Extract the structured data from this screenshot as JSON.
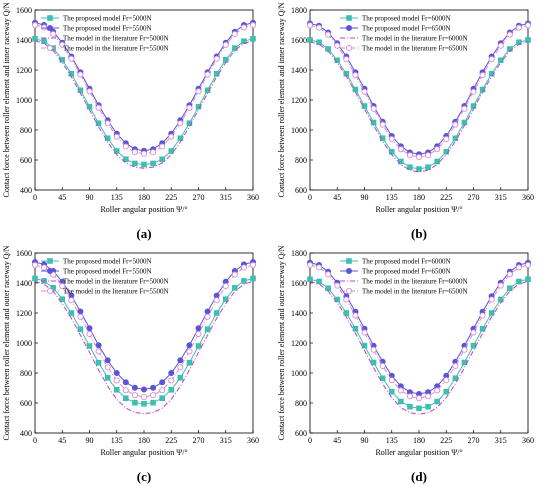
{
  "x_angles": [
    0,
    15,
    30,
    45,
    60,
    75,
    90,
    105,
    120,
    135,
    150,
    165,
    180,
    195,
    210,
    225,
    240,
    255,
    270,
    285,
    300,
    315,
    330,
    345,
    360
  ],
  "colors": {
    "proposed_low": "#3fbfb0",
    "proposed_high": "#5b55d6",
    "literature_low": "#c040c8",
    "literature_high": "#d88ad8",
    "axis": "#000000"
  },
  "chart_data": [
    {
      "type": "line",
      "panel_label": "(a)",
      "xlabel": "Roller angular position Ψ/°",
      "ylabel": "Contact force between roller element and inner raceway Q/N",
      "xlim": [
        0,
        360
      ],
      "ylim": [
        400,
        1600
      ],
      "xticks": [
        "0",
        "45",
        "90",
        "135",
        "180",
        "225",
        "270",
        "315",
        "360"
      ],
      "yticks": [
        "400",
        "600",
        "800",
        "1000",
        "1200",
        "1400",
        "1600"
      ],
      "legend_position": "top-left",
      "series": [
        {
          "name": "The proposed model  Fr=5000N",
          "line": "solid",
          "marker": "square",
          "values": [
            1408,
            1392,
            1346,
            1268,
            1175,
            1065,
            955,
            845,
            745,
            660,
            605,
            577,
            570,
            577,
            605,
            660,
            745,
            845,
            955,
            1065,
            1175,
            1268,
            1346,
            1392,
            1408
          ]
        },
        {
          "name": "The proposed model  Fr=5500N",
          "line": "solid",
          "marker": "circle",
          "values": [
            1515,
            1500,
            1455,
            1382,
            1290,
            1185,
            1075,
            965,
            865,
            775,
            712,
            672,
            662,
            672,
            712,
            775,
            865,
            965,
            1075,
            1185,
            1290,
            1382,
            1455,
            1500,
            1515
          ]
        },
        {
          "name": "The model in the literature  Fr=5000N",
          "line": "dashdot",
          "marker": "none",
          "values": [
            1395,
            1378,
            1330,
            1250,
            1155,
            1045,
            935,
            822,
            720,
            635,
            580,
            552,
            545,
            552,
            580,
            635,
            720,
            822,
            935,
            1045,
            1155,
            1250,
            1330,
            1378,
            1395
          ]
        },
        {
          "name": "The model in the literature  Fr=5500N",
          "line": "dashdot",
          "marker": "circle-open",
          "values": [
            1500,
            1484,
            1440,
            1368,
            1275,
            1170,
            1058,
            948,
            845,
            755,
            690,
            652,
            642,
            652,
            690,
            755,
            845,
            948,
            1058,
            1170,
            1275,
            1368,
            1440,
            1484,
            1500
          ]
        }
      ]
    },
    {
      "type": "line",
      "panel_label": "(b)",
      "xlabel": "Roller angular position Ψ/°",
      "ylabel": "Contact force between roller element and inner raceway Q/N",
      "xlim": [
        0,
        360
      ],
      "ylim": [
        600,
        1800
      ],
      "xticks": [
        "0",
        "45",
        "90",
        "135",
        "180",
        "225",
        "270",
        "315",
        "360"
      ],
      "yticks": [
        "600",
        "800",
        "1000",
        "1200",
        "1400",
        "1600",
        "1800"
      ],
      "legend_position": "top-center",
      "series": [
        {
          "name": "The proposed model  Fr=6000N",
          "line": "solid",
          "marker": "square",
          "values": [
            1600,
            1585,
            1540,
            1465,
            1375,
            1270,
            1160,
            1050,
            945,
            855,
            790,
            752,
            740,
            752,
            790,
            855,
            945,
            1050,
            1160,
            1270,
            1375,
            1465,
            1540,
            1585,
            1600
          ]
        },
        {
          "name": "The proposed model  Fr=6500N",
          "line": "solid",
          "marker": "circle",
          "values": [
            1710,
            1695,
            1650,
            1578,
            1490,
            1385,
            1275,
            1160,
            1055,
            960,
            892,
            850,
            838,
            850,
            892,
            960,
            1055,
            1160,
            1275,
            1385,
            1490,
            1578,
            1650,
            1695,
            1710
          ]
        },
        {
          "name": "The model in the literature  Fr=6000N",
          "line": "dashdot",
          "marker": "none",
          "values": [
            1588,
            1572,
            1526,
            1450,
            1358,
            1252,
            1140,
            1030,
            925,
            835,
            770,
            732,
            720,
            732,
            770,
            835,
            925,
            1030,
            1140,
            1252,
            1358,
            1450,
            1526,
            1572,
            1588
          ]
        },
        {
          "name": "The model in the literature  Fr=6500N",
          "line": "dashdot",
          "marker": "circle-open",
          "values": [
            1698,
            1682,
            1636,
            1562,
            1472,
            1366,
            1255,
            1142,
            1036,
            940,
            872,
            832,
            820,
            832,
            872,
            940,
            1036,
            1142,
            1255,
            1366,
            1472,
            1562,
            1636,
            1682,
            1698
          ]
        }
      ]
    },
    {
      "type": "line",
      "panel_label": "(c)",
      "xlabel": "Roller angular position Ψ/°",
      "ylabel": "Contact force between roller element and outer raceway Q/N",
      "xlim": [
        0,
        360
      ],
      "ylim": [
        400,
        1600
      ],
      "xticks": [
        "0",
        "45",
        "90",
        "135",
        "180",
        "225",
        "270",
        "315",
        "360"
      ],
      "yticks": [
        "400",
        "600",
        "800",
        "1000",
        "1200",
        "1400",
        "1600"
      ],
      "legend_position": "top-left",
      "series": [
        {
          "name": "The proposed model  Fr=5000N",
          "line": "solid",
          "marker": "square",
          "values": [
            1430,
            1414,
            1368,
            1292,
            1200,
            1092,
            980,
            868,
            768,
            688,
            632,
            602,
            595,
            602,
            632,
            688,
            768,
            868,
            980,
            1092,
            1200,
            1292,
            1368,
            1414,
            1430
          ]
        },
        {
          "name": "The proposed model  Fr=5500N",
          "line": "solid",
          "marker": "circle",
          "values": [
            1540,
            1524,
            1480,
            1408,
            1316,
            1210,
            1098,
            985,
            885,
            800,
            738,
            702,
            690,
            702,
            738,
            800,
            885,
            985,
            1098,
            1210,
            1316,
            1408,
            1480,
            1524,
            1540
          ]
        },
        {
          "name": "The model in the literature  Fr=5000N",
          "line": "dashdot",
          "marker": "none",
          "values": [
            1410,
            1392,
            1344,
            1262,
            1165,
            1052,
            938,
            820,
            712,
            625,
            566,
            536,
            530,
            536,
            566,
            625,
            712,
            820,
            938,
            1052,
            1165,
            1262,
            1344,
            1392,
            1410
          ]
        },
        {
          "name": "The model in the literature  Fr=5500N",
          "line": "dashdot",
          "marker": "circle-open",
          "values": [
            1520,
            1503,
            1456,
            1380,
            1285,
            1175,
            1060,
            944,
            838,
            750,
            685,
            652,
            640,
            652,
            685,
            750,
            838,
            944,
            1060,
            1175,
            1285,
            1380,
            1456,
            1503,
            1520
          ]
        }
      ]
    },
    {
      "type": "line",
      "panel_label": "(d)",
      "xlabel": "Roller angular position Ψ/°",
      "ylabel": "Contact force between roller element and outer raceway Q/N",
      "xlim": [
        0,
        360
      ],
      "ylim": [
        600,
        1800
      ],
      "xticks": [
        "0",
        "45",
        "90",
        "135",
        "180",
        "225",
        "270",
        "315",
        "360"
      ],
      "yticks": [
        "600",
        "800",
        "1000",
        "1200",
        "1400",
        "1600",
        "1800"
      ],
      "legend_position": "top-center",
      "series": [
        {
          "name": "The proposed model  Fr=6000N",
          "line": "solid",
          "marker": "square",
          "values": [
            1625,
            1610,
            1565,
            1490,
            1400,
            1295,
            1182,
            1070,
            965,
            875,
            810,
            775,
            765,
            775,
            810,
            875,
            965,
            1070,
            1182,
            1295,
            1400,
            1490,
            1565,
            1610,
            1625
          ]
        },
        {
          "name": "The proposed model  Fr=6500N",
          "line": "solid",
          "marker": "circle",
          "values": [
            1735,
            1720,
            1675,
            1602,
            1512,
            1408,
            1295,
            1182,
            1075,
            982,
            912,
            872,
            860,
            872,
            912,
            982,
            1075,
            1182,
            1295,
            1408,
            1512,
            1602,
            1675,
            1720,
            1735
          ]
        },
        {
          "name": "The model in the literature  Fr=6000N",
          "line": "dashdot",
          "marker": "none",
          "values": [
            1610,
            1594,
            1546,
            1468,
            1374,
            1265,
            1150,
            1036,
            928,
            836,
            770,
            735,
            725,
            735,
            770,
            836,
            928,
            1036,
            1150,
            1265,
            1374,
            1468,
            1546,
            1594,
            1610
          ]
        },
        {
          "name": "The model in the literature  Fr=6500N",
          "line": "dashdot",
          "marker": "circle-open",
          "values": [
            1720,
            1704,
            1658,
            1583,
            1490,
            1383,
            1270,
            1155,
            1047,
            952,
            884,
            845,
            832,
            845,
            884,
            952,
            1047,
            1155,
            1270,
            1383,
            1490,
            1583,
            1658,
            1704,
            1720
          ]
        }
      ]
    }
  ]
}
